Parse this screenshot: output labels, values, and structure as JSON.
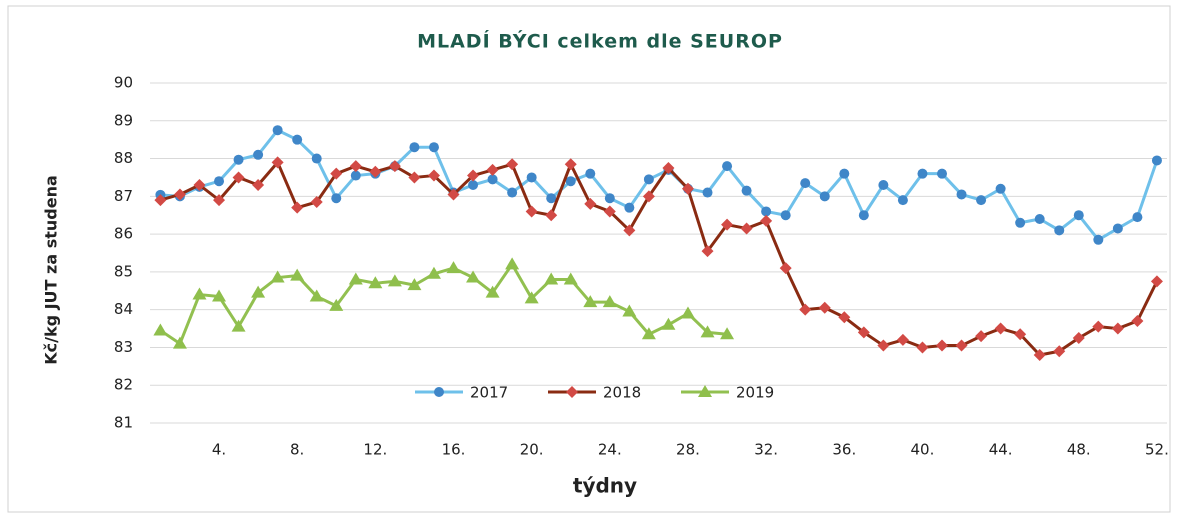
{
  "chart_data": {
    "type": "line",
    "title": "MLADÍ  BÝCI celkem dle SEUROP",
    "y_label": "Kč/kg JUT za studena",
    "x_label": "týdny",
    "categories": [
      null,
      null,
      null,
      "4.",
      null,
      null,
      null,
      "8.",
      null,
      null,
      null,
      "12.",
      null,
      null,
      null,
      "16.",
      null,
      null,
      null,
      "20.",
      null,
      null,
      null,
      "24.",
      null,
      null,
      null,
      "28.",
      null,
      null,
      null,
      "32.",
      null,
      null,
      null,
      "36.",
      null,
      null,
      null,
      "40.",
      null,
      null,
      null,
      "44.",
      null,
      null,
      null,
      "48.",
      null,
      null,
      null,
      "52."
    ],
    "ylim": [
      81,
      90
    ],
    "yticks": [
      81,
      82,
      83,
      84,
      85,
      86,
      87,
      88,
      89,
      90
    ],
    "grid": true,
    "legend": "bottom",
    "series": [
      {
        "name": "2017",
        "color": "#6ec0ea",
        "marker_color": "#3f86c8",
        "marker": "circle",
        "values": [
          87.04,
          87.0,
          87.25,
          87.4,
          87.97,
          88.1,
          88.75,
          88.5,
          88.0,
          86.95,
          87.55,
          87.6,
          87.8,
          88.3,
          88.3,
          87.1,
          87.3,
          87.45,
          87.1,
          87.5,
          86.95,
          87.4,
          87.6,
          86.95,
          86.7,
          87.45,
          87.7,
          87.2,
          87.1,
          87.8,
          87.15,
          86.6,
          86.5,
          87.35,
          87.0,
          87.6,
          86.5,
          87.3,
          86.9,
          87.6,
          87.6,
          87.05,
          86.9,
          87.2,
          86.3,
          86.4,
          86.1,
          86.5,
          85.85,
          86.15,
          86.45,
          87.95
        ]
      },
      {
        "name": "2018",
        "color": "#8a2b12",
        "marker_color": "#d24a45",
        "marker": "diamond",
        "values": [
          86.9,
          87.05,
          87.3,
          86.9,
          87.5,
          87.3,
          87.9,
          86.7,
          86.85,
          87.6,
          87.8,
          87.65,
          87.8,
          87.5,
          87.55,
          87.05,
          87.55,
          87.7,
          87.85,
          86.6,
          86.5,
          87.85,
          86.8,
          86.6,
          86.1,
          87.0,
          87.75,
          87.2,
          85.55,
          86.25,
          86.15,
          86.35,
          85.1,
          84.0,
          84.05,
          83.8,
          83.4,
          83.05,
          83.2,
          83.0,
          83.05,
          83.05,
          83.3,
          83.5,
          83.35,
          82.8,
          82.9,
          83.25,
          83.55,
          83.5,
          83.7,
          84.75
        ]
      },
      {
        "name": "2019",
        "color": "#92c050",
        "marker_color": "#8fbf4c",
        "marker": "triangle",
        "values": [
          83.45,
          83.1,
          84.4,
          84.35,
          83.55,
          84.45,
          84.85,
          84.9,
          84.35,
          84.1,
          84.8,
          84.7,
          84.75,
          84.65,
          84.95,
          85.1,
          84.85,
          84.45,
          85.2,
          84.3,
          84.8,
          84.8,
          84.2,
          84.2,
          83.95,
          83.35,
          83.6,
          83.9,
          83.4,
          83.35,
          null,
          null,
          null,
          null,
          null,
          null,
          null,
          null,
          null,
          null,
          null,
          null,
          null,
          null,
          null,
          null,
          null,
          null,
          null,
          null,
          null,
          null
        ]
      }
    ]
  }
}
